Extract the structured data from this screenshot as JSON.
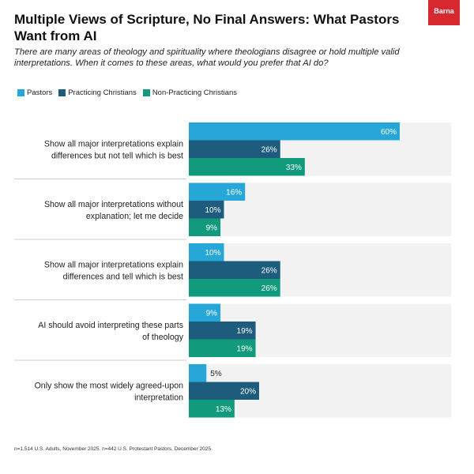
{
  "title": "Multiple Views of Scripture, No Final Answers: What Pastors Want from AI",
  "subtitle": "There are many areas of theology and spirituality where theologians disagree or hold multiple valid interpretations. When it comes to these areas, what would you prefer that AI do?",
  "logo_text": "Barna",
  "footnote": "n=1,514 U.S. Adults, November 2025. n=442 U.S. Protestant Pastors, December 2025.",
  "colors": {
    "pastors": "#26a7d8",
    "practicing": "#1d5c7c",
    "non_practicing": "#119a7c",
    "band": "#f2f2f2"
  },
  "chart_data": {
    "type": "bar",
    "orientation": "horizontal",
    "categories": [
      "Show all major interpretations explain differences but not tell which is best",
      "Show all major interpretations without explanation; let me decide",
      "Show all major interpretations explain differences and tell which is best",
      "AI should avoid interpreting these parts of theology",
      "Only show the most widely agreed-upon interpretation"
    ],
    "category_lines": [
      [
        "Show all major interpretations explain",
        "differences but not tell which is best"
      ],
      [
        "Show all major interpretations without",
        "explanation; let me decide"
      ],
      [
        "Show all major interpretations explain",
        "differences and tell which is best"
      ],
      [
        "AI should avoid interpreting these parts",
        "of theology"
      ],
      [
        "Only show the most widely agreed-upon",
        "interpretation"
      ]
    ],
    "series": [
      {
        "name": "Pastors",
        "values": [
          60,
          16,
          10,
          9,
          5
        ]
      },
      {
        "name": "Practicing Christians",
        "values": [
          26,
          10,
          26,
          19,
          20
        ]
      },
      {
        "name": "Non-Practicing Christians",
        "values": [
          33,
          9,
          26,
          19,
          13
        ]
      }
    ],
    "value_suffix": "%",
    "xlim": [
      0,
      100
    ],
    "legend_position": "top-left",
    "grid": false
  }
}
